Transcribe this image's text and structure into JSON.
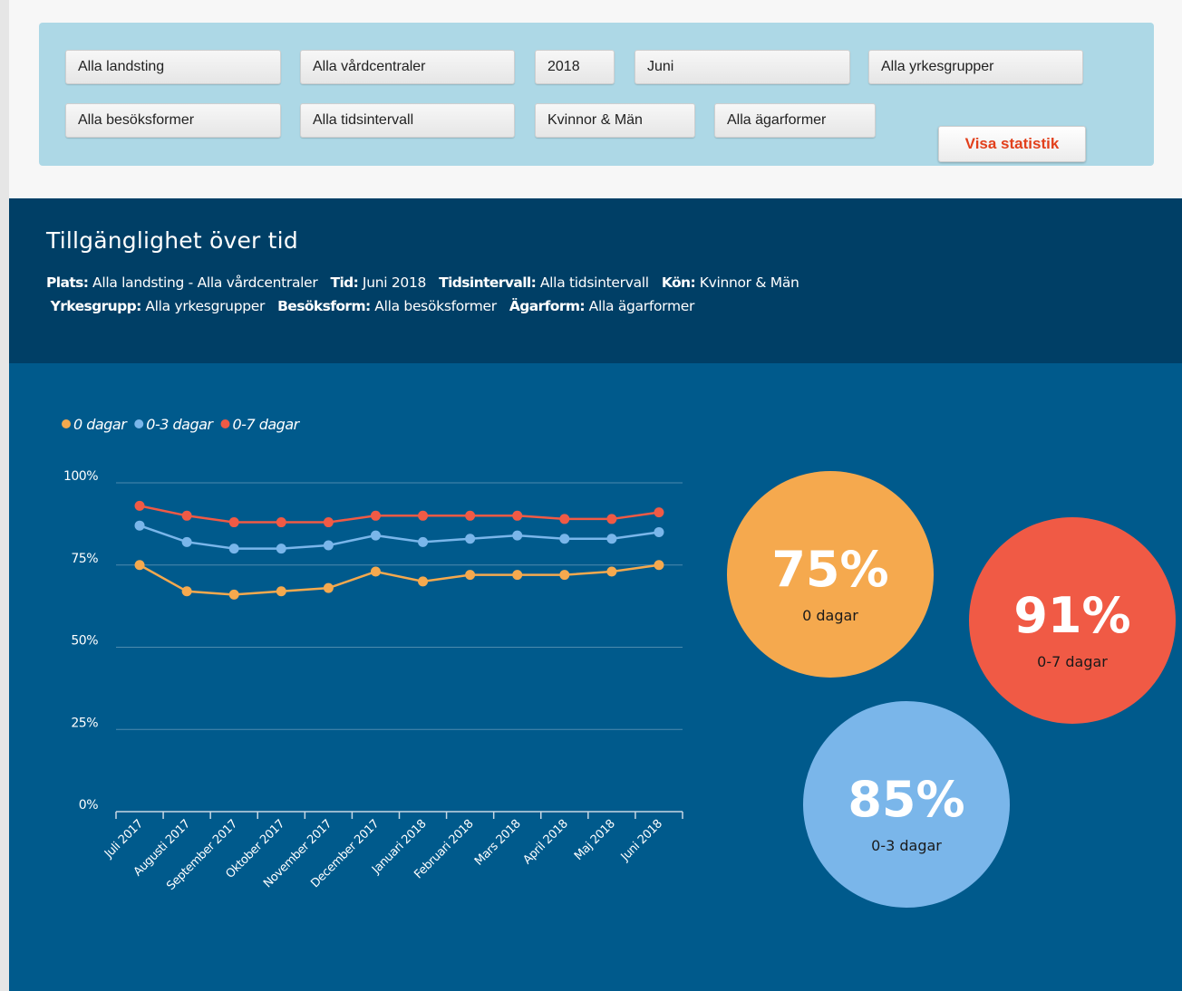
{
  "filters": [
    "Alla landsting",
    "Alla vårdcentraler",
    "2018",
    "Juni",
    "Alla yrkesgrupper",
    "Alla besöksformer",
    "Alla tidsintervall",
    "Kvinnor & Män",
    "Alla ägarformer"
  ],
  "button": "Visa statistik",
  "header": {
    "title": "Tillgänglighet över tid",
    "meta": [
      {
        "label": "Plats:",
        "value": "Alla landsting - Alla vårdcentraler"
      },
      {
        "label": "Tid:",
        "value": "Juni 2018"
      },
      {
        "label": "Tidsintervall:",
        "value": "Alla tidsintervall"
      },
      {
        "label": "Kön:",
        "value": "Kvinnor & Män"
      },
      {
        "label": "Yrkesgrupp:",
        "value": "Alla yrkesgrupper"
      },
      {
        "label": "Besöksform:",
        "value": "Alla besöksformer"
      },
      {
        "label": "Ägarform:",
        "value": "Alla ägarformer"
      }
    ]
  },
  "chart_data": {
    "type": "line",
    "categories": [
      "Juli 2017",
      "Augusti 2017",
      "September 2017",
      "Oktober 2017",
      "November 2017",
      "December 2017",
      "Januari 2018",
      "Februari 2018",
      "Mars 2018",
      "April 2018",
      "Maj 2018",
      "Juni 2018"
    ],
    "series": [
      {
        "name": "0 dagar",
        "color": "#f5a94e",
        "values": [
          75,
          67,
          66,
          67,
          68,
          73,
          70,
          72,
          72,
          72,
          73,
          75
        ]
      },
      {
        "name": "0-3 dagar",
        "color": "#7ab6ea",
        "values": [
          87,
          82,
          80,
          80,
          81,
          84,
          82,
          83,
          84,
          83,
          83,
          85
        ]
      },
      {
        "name": "0-7 dagar",
        "color": "#f05a45",
        "values": [
          93,
          90,
          88,
          88,
          88,
          90,
          90,
          90,
          90,
          89,
          89,
          91
        ]
      }
    ],
    "ylim": [
      0,
      100
    ],
    "yticks": [
      {
        "value": 0,
        "label": "0%"
      },
      {
        "value": 25,
        "label": "25%"
      },
      {
        "value": 50,
        "label": "50%"
      },
      {
        "value": 75,
        "label": "75%"
      },
      {
        "value": 100,
        "label": "100%"
      }
    ],
    "grid": true
  },
  "bubbles": [
    {
      "label": "75%",
      "name": "0 dagar",
      "color": "#f5a94e"
    },
    {
      "label": "91%",
      "name": "0-7 dagar",
      "color": "#f05a45"
    },
    {
      "label": "85%",
      "name": "0-3 dagar",
      "color": "#7ab6ea"
    }
  ]
}
